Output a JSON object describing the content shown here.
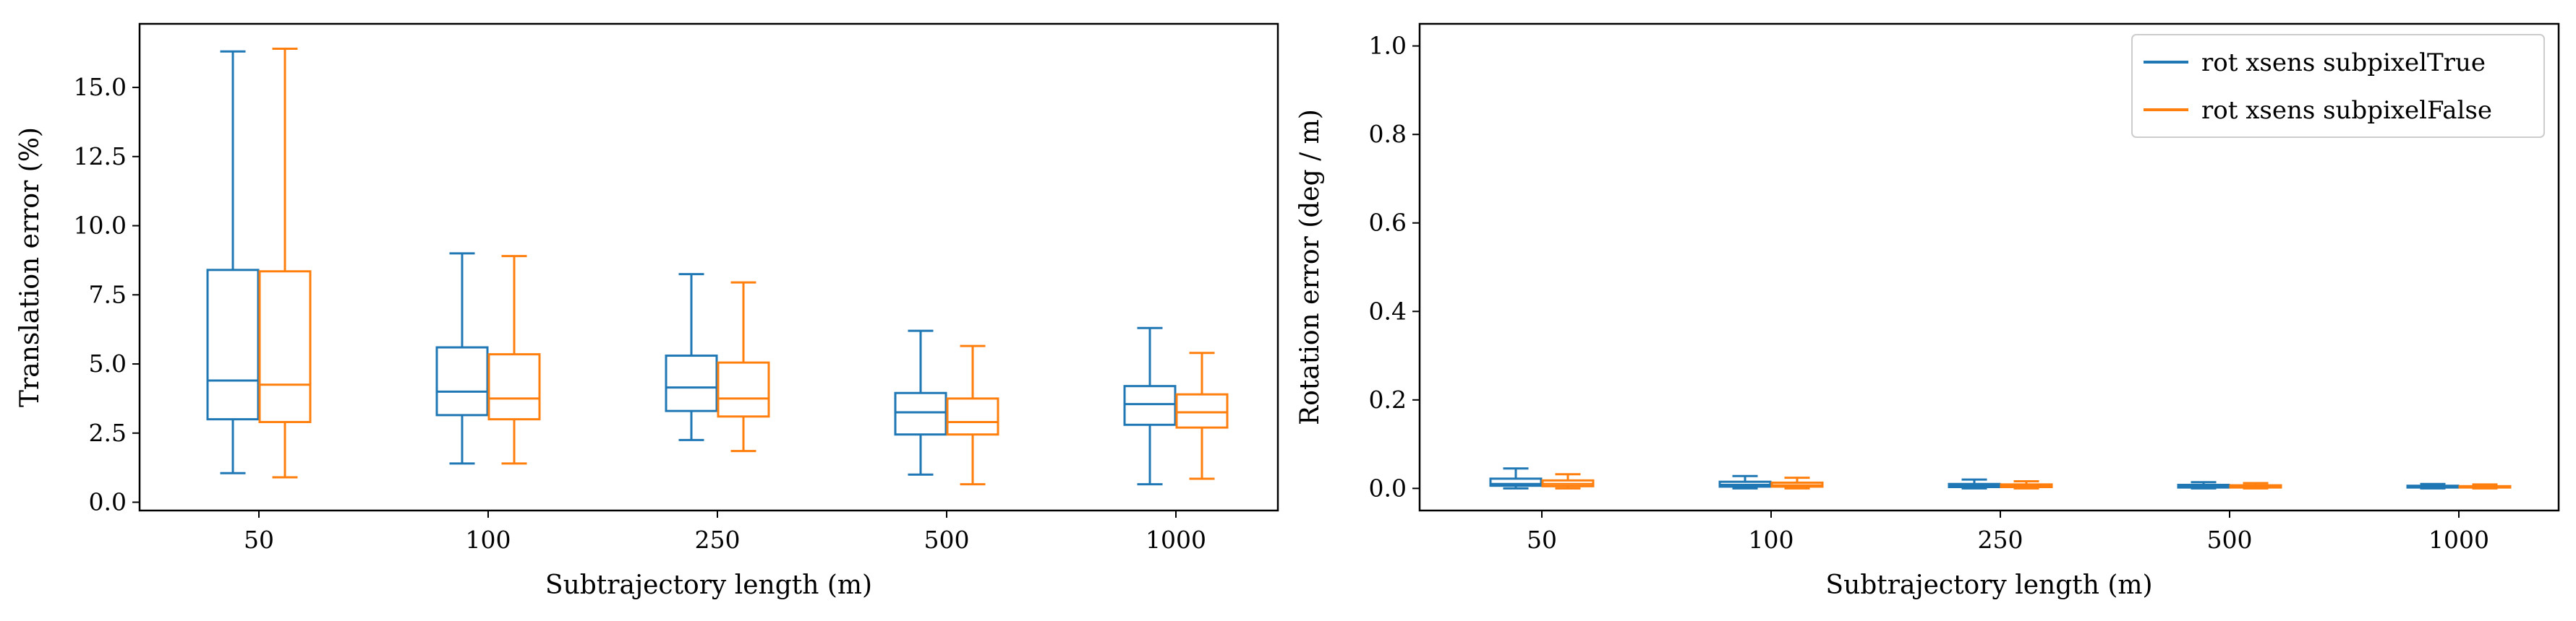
{
  "chart_data": [
    {
      "type": "box",
      "categories": [
        "50",
        "100",
        "250",
        "500",
        "1000"
      ],
      "xlabel": "Subtrajectory length (m)",
      "ylabel": "Translation error (%)",
      "ylim": [
        -0.3,
        17.3
      ],
      "yticks": [
        0.0,
        2.5,
        5.0,
        7.5,
        10.0,
        12.5,
        15.0
      ],
      "ytick_labels": [
        "0.0",
        "2.5",
        "5.0",
        "7.5",
        "10.0",
        "12.5",
        "15.0"
      ],
      "grid": false,
      "series": [
        {
          "name": "rot xsens subpixelTrue",
          "color": "#1f77b4",
          "boxes": [
            {
              "whislo": 1.05,
              "q1": 3.0,
              "med": 4.4,
              "q3": 8.4,
              "whishi": 16.3
            },
            {
              "whislo": 1.4,
              "q1": 3.15,
              "med": 4.0,
              "q3": 5.6,
              "whishi": 9.0
            },
            {
              "whislo": 2.25,
              "q1": 3.3,
              "med": 4.15,
              "q3": 5.3,
              "whishi": 8.25
            },
            {
              "whislo": 1.0,
              "q1": 2.45,
              "med": 3.25,
              "q3": 3.95,
              "whishi": 6.2
            },
            {
              "whislo": 0.65,
              "q1": 2.8,
              "med": 3.55,
              "q3": 4.2,
              "whishi": 6.3
            }
          ]
        },
        {
          "name": "rot xsens subpixelFalse",
          "color": "#ff7f0e",
          "boxes": [
            {
              "whislo": 0.9,
              "q1": 2.9,
              "med": 4.25,
              "q3": 8.35,
              "whishi": 16.4
            },
            {
              "whislo": 1.4,
              "q1": 3.0,
              "med": 3.75,
              "q3": 5.35,
              "whishi": 8.9
            },
            {
              "whislo": 1.85,
              "q1": 3.1,
              "med": 3.75,
              "q3": 5.05,
              "whishi": 7.95
            },
            {
              "whislo": 0.65,
              "q1": 2.45,
              "med": 2.9,
              "q3": 3.75,
              "whishi": 5.65
            },
            {
              "whislo": 0.85,
              "q1": 2.7,
              "med": 3.25,
              "q3": 3.9,
              "whishi": 5.4
            }
          ]
        }
      ]
    },
    {
      "type": "box",
      "categories": [
        "50",
        "100",
        "250",
        "500",
        "1000"
      ],
      "xlabel": "Subtrajectory length (m)",
      "ylabel": "Rotation error (deg / m)",
      "ylim": [
        -0.05,
        1.05
      ],
      "yticks": [
        0.0,
        0.2,
        0.4,
        0.6,
        0.8,
        1.0
      ],
      "ytick_labels": [
        "0.0",
        "0.2",
        "0.4",
        "0.6",
        "0.8",
        "1.0"
      ],
      "grid": false,
      "legend": {
        "placement": "top-right",
        "entries": [
          "rot xsens subpixelTrue",
          "rot xsens subpixelFalse"
        ]
      },
      "series": [
        {
          "name": "rot xsens subpixelTrue",
          "color": "#1f77b4",
          "boxes": [
            {
              "whislo": 0.0,
              "q1": 0.006,
              "med": 0.01,
              "q3": 0.022,
              "whishi": 0.045
            },
            {
              "whislo": 0.0,
              "q1": 0.004,
              "med": 0.008,
              "q3": 0.015,
              "whishi": 0.028
            },
            {
              "whislo": 0.0,
              "q1": 0.003,
              "med": 0.006,
              "q3": 0.01,
              "whishi": 0.02
            },
            {
              "whislo": 0.0,
              "q1": 0.002,
              "med": 0.004,
              "q3": 0.008,
              "whishi": 0.014
            },
            {
              "whislo": 0.0,
              "q1": 0.002,
              "med": 0.003,
              "q3": 0.006,
              "whishi": 0.01
            }
          ]
        },
        {
          "name": "rot xsens subpixelFalse",
          "color": "#ff7f0e",
          "boxes": [
            {
              "whislo": 0.0,
              "q1": 0.005,
              "med": 0.01,
              "q3": 0.018,
              "whishi": 0.032
            },
            {
              "whislo": 0.0,
              "q1": 0.004,
              "med": 0.007,
              "q3": 0.013,
              "whishi": 0.024
            },
            {
              "whislo": 0.0,
              "q1": 0.003,
              "med": 0.005,
              "q3": 0.009,
              "whishi": 0.016
            },
            {
              "whislo": 0.0,
              "q1": 0.002,
              "med": 0.004,
              "q3": 0.007,
              "whishi": 0.012
            },
            {
              "whislo": 0.0,
              "q1": 0.002,
              "med": 0.003,
              "q3": 0.005,
              "whishi": 0.009
            }
          ]
        }
      ]
    }
  ]
}
